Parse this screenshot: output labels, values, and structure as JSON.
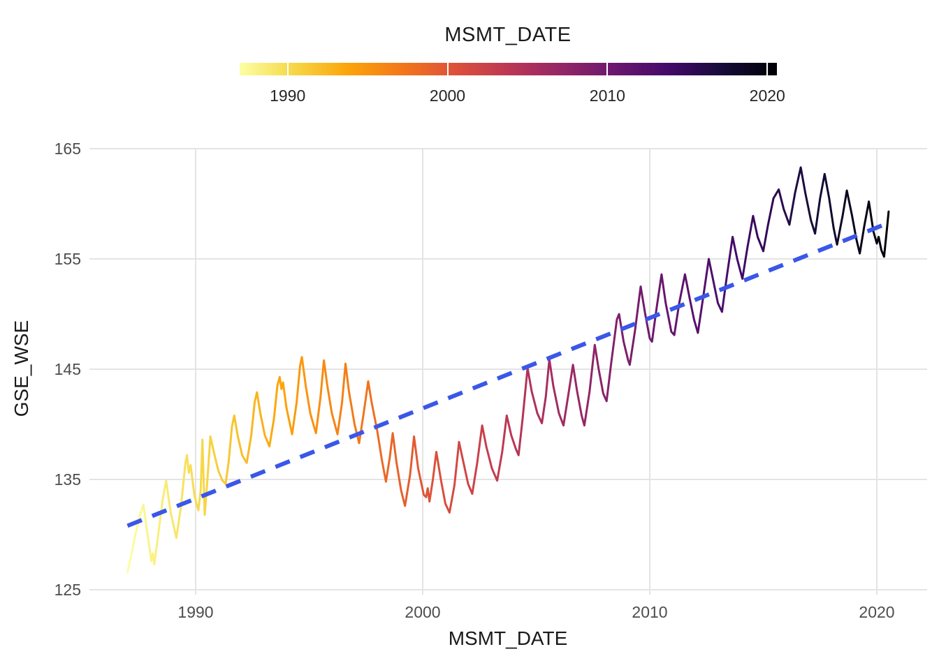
{
  "legend": {
    "title": "MSMT_DATE",
    "range_years": [
      1987.0,
      2020.6
    ],
    "ticks": [
      {
        "label": "1990",
        "year": 1990
      },
      {
        "label": "2000",
        "year": 2000
      },
      {
        "label": "2010",
        "year": 2010
      },
      {
        "label": "2020",
        "year": 2020
      }
    ],
    "palette": [
      "#FCFFA4",
      "#F6D746",
      "#FCA50A",
      "#F37819",
      "#DD513A",
      "#BC3754",
      "#932667",
      "#6A176E",
      "#420A68",
      "#160B39",
      "#000004"
    ],
    "tick_mark_color": "#FFFFFF"
  },
  "axes": {
    "x": {
      "label": "MSMT_DATE",
      "ticks": [
        {
          "label": "1990",
          "year": 1990
        },
        {
          "label": "2000",
          "year": 2000
        },
        {
          "label": "2010",
          "year": 2010
        },
        {
          "label": "2020",
          "year": 2020
        }
      ]
    },
    "y": {
      "label": "GSE_WSE",
      "ticks": [
        {
          "label": "165",
          "value": 165
        },
        {
          "label": "155",
          "value": 155
        },
        {
          "label": "145",
          "value": 145
        },
        {
          "label": "135",
          "value": 135
        },
        {
          "label": "125",
          "value": 125
        }
      ]
    }
  },
  "colors": {
    "grid": "#E4E4E4",
    "axis_text": "#4D4D4D",
    "label_text": "#1A1A1A",
    "trend_blue": "#3A57E8",
    "background": "#FFFFFF"
  },
  "chart_data": {
    "type": "line",
    "title": "MSMT_DATE",
    "xlabel": "MSMT_DATE",
    "ylabel": "GSE_WSE",
    "xlim": [
      1985.4,
      2022.4
    ],
    "ylim": [
      124.5,
      165.2
    ],
    "grid": "major-only, light gray on white",
    "legend_position": "top colorbar, inferno palette reversed (light yellow = 1987, black = 2020.6)",
    "series": [
      {
        "name": "GSE_WSE",
        "style": "solid, width 3, colored by MSMT_DATE along inferno-reversed gradient",
        "points": [
          [
            1987.0,
            126.6
          ],
          [
            1987.15,
            128.0
          ],
          [
            1987.35,
            130.0
          ],
          [
            1987.55,
            131.8
          ],
          [
            1987.7,
            132.7
          ],
          [
            1987.85,
            130.5
          ],
          [
            1988.05,
            127.6
          ],
          [
            1988.12,
            128.3
          ],
          [
            1988.18,
            127.3
          ],
          [
            1988.35,
            130.0
          ],
          [
            1988.55,
            133.2
          ],
          [
            1988.7,
            134.9
          ],
          [
            1988.9,
            132.0
          ],
          [
            1989.15,
            129.7
          ],
          [
            1989.35,
            132.5
          ],
          [
            1989.55,
            136.5
          ],
          [
            1989.62,
            137.2
          ],
          [
            1989.7,
            135.6
          ],
          [
            1989.78,
            136.3
          ],
          [
            1989.95,
            133.5
          ],
          [
            1990.12,
            132.2
          ],
          [
            1990.22,
            134.0
          ],
          [
            1990.3,
            138.6
          ],
          [
            1990.4,
            131.8
          ],
          [
            1990.52,
            135.0
          ],
          [
            1990.65,
            138.9
          ],
          [
            1990.8,
            137.5
          ],
          [
            1991.0,
            135.8
          ],
          [
            1991.18,
            134.9
          ],
          [
            1991.32,
            134.6
          ],
          [
            1991.45,
            136.5
          ],
          [
            1991.6,
            139.8
          ],
          [
            1991.7,
            140.8
          ],
          [
            1991.85,
            139.0
          ],
          [
            1992.05,
            137.2
          ],
          [
            1992.25,
            136.5
          ],
          [
            1992.45,
            139.0
          ],
          [
            1992.6,
            142.0
          ],
          [
            1992.7,
            142.9
          ],
          [
            1992.85,
            141.0
          ],
          [
            1993.05,
            139.0
          ],
          [
            1993.25,
            138.0
          ],
          [
            1993.45,
            140.5
          ],
          [
            1993.6,
            143.5
          ],
          [
            1993.7,
            144.3
          ],
          [
            1993.78,
            143.2
          ],
          [
            1993.85,
            143.8
          ],
          [
            1994.0,
            141.5
          ],
          [
            1994.25,
            139.1
          ],
          [
            1994.45,
            142.0
          ],
          [
            1994.6,
            145.3
          ],
          [
            1994.68,
            146.1
          ],
          [
            1994.85,
            143.5
          ],
          [
            1995.05,
            141.0
          ],
          [
            1995.3,
            139.2
          ],
          [
            1995.5,
            142.5
          ],
          [
            1995.65,
            145.8
          ],
          [
            1995.8,
            143.5
          ],
          [
            1996.0,
            141.0
          ],
          [
            1996.25,
            139.1
          ],
          [
            1996.45,
            142.0
          ],
          [
            1996.6,
            145.5
          ],
          [
            1996.75,
            143.0
          ],
          [
            1997.0,
            140.0
          ],
          [
            1997.2,
            138.3
          ],
          [
            1997.4,
            141.0
          ],
          [
            1997.6,
            143.9
          ],
          [
            1997.75,
            142.0
          ],
          [
            1998.0,
            139.4
          ],
          [
            1998.2,
            136.8
          ],
          [
            1998.38,
            134.8
          ],
          [
            1998.55,
            137.0
          ],
          [
            1998.68,
            139.2
          ],
          [
            1998.85,
            136.5
          ],
          [
            1999.05,
            134.0
          ],
          [
            1999.22,
            132.6
          ],
          [
            1999.45,
            135.5
          ],
          [
            1999.62,
            138.9
          ],
          [
            1999.8,
            136.0
          ],
          [
            2000.05,
            133.6
          ],
          [
            2000.15,
            133.4
          ],
          [
            2000.22,
            134.2
          ],
          [
            2000.3,
            133.0
          ],
          [
            2000.45,
            135.0
          ],
          [
            2000.6,
            137.5
          ],
          [
            2000.8,
            135.0
          ],
          [
            2001.0,
            132.8
          ],
          [
            2001.18,
            132.0
          ],
          [
            2001.4,
            134.5
          ],
          [
            2001.6,
            138.4
          ],
          [
            2001.8,
            136.5
          ],
          [
            2002.0,
            134.6
          ],
          [
            2002.18,
            133.7
          ],
          [
            2002.4,
            136.5
          ],
          [
            2002.62,
            139.9
          ],
          [
            2002.8,
            138.0
          ],
          [
            2003.05,
            136.0
          ],
          [
            2003.28,
            134.9
          ],
          [
            2003.5,
            137.5
          ],
          [
            2003.7,
            140.8
          ],
          [
            2003.9,
            139.0
          ],
          [
            2004.1,
            137.8
          ],
          [
            2004.22,
            137.2
          ],
          [
            2004.4,
            140.5
          ],
          [
            2004.62,
            145.1
          ],
          [
            2004.8,
            143.0
          ],
          [
            2005.05,
            141.0
          ],
          [
            2005.25,
            140.1
          ],
          [
            2005.42,
            142.5
          ],
          [
            2005.58,
            145.9
          ],
          [
            2005.75,
            143.5
          ],
          [
            2006.0,
            141.0
          ],
          [
            2006.2,
            139.9
          ],
          [
            2006.4,
            142.5
          ],
          [
            2006.62,
            145.4
          ],
          [
            2006.8,
            143.0
          ],
          [
            2007.0,
            140.8
          ],
          [
            2007.12,
            139.9
          ],
          [
            2007.35,
            143.0
          ],
          [
            2007.58,
            147.2
          ],
          [
            2007.75,
            145.0
          ],
          [
            2007.95,
            142.8
          ],
          [
            2008.1,
            142.1
          ],
          [
            2008.3,
            145.5
          ],
          [
            2008.55,
            149.5
          ],
          [
            2008.65,
            150.0
          ],
          [
            2008.85,
            147.5
          ],
          [
            2009.05,
            145.8
          ],
          [
            2009.12,
            145.4
          ],
          [
            2009.35,
            148.5
          ],
          [
            2009.6,
            152.5
          ],
          [
            2009.8,
            150.0
          ],
          [
            2010.0,
            147.8
          ],
          [
            2010.1,
            147.5
          ],
          [
            2010.3,
            150.5
          ],
          [
            2010.52,
            153.6
          ],
          [
            2010.7,
            151.0
          ],
          [
            2010.95,
            148.4
          ],
          [
            2011.08,
            148.1
          ],
          [
            2011.3,
            151.0
          ],
          [
            2011.55,
            153.6
          ],
          [
            2011.75,
            151.5
          ],
          [
            2011.95,
            149.5
          ],
          [
            2012.12,
            148.3
          ],
          [
            2012.35,
            151.5
          ],
          [
            2012.6,
            155.0
          ],
          [
            2012.8,
            153.0
          ],
          [
            2013.0,
            151.0
          ],
          [
            2013.18,
            150.2
          ],
          [
            2013.4,
            153.5
          ],
          [
            2013.65,
            157.0
          ],
          [
            2013.85,
            155.0
          ],
          [
            2014.08,
            153.2
          ],
          [
            2014.3,
            156.0
          ],
          [
            2014.55,
            158.9
          ],
          [
            2014.75,
            157.0
          ],
          [
            2015.0,
            155.7
          ],
          [
            2015.2,
            158.0
          ],
          [
            2015.45,
            160.5
          ],
          [
            2015.68,
            161.3
          ],
          [
            2015.9,
            159.5
          ],
          [
            2016.15,
            158.1
          ],
          [
            2016.4,
            161.0
          ],
          [
            2016.65,
            163.3
          ],
          [
            2016.85,
            161.0
          ],
          [
            2017.1,
            158.5
          ],
          [
            2017.28,
            157.3
          ],
          [
            2017.5,
            160.5
          ],
          [
            2017.7,
            162.7
          ],
          [
            2017.9,
            160.5
          ],
          [
            2018.1,
            157.8
          ],
          [
            2018.25,
            156.3
          ],
          [
            2018.5,
            159.0
          ],
          [
            2018.68,
            161.2
          ],
          [
            2018.9,
            159.0
          ],
          [
            2019.1,
            156.8
          ],
          [
            2019.25,
            155.5
          ],
          [
            2019.45,
            158.0
          ],
          [
            2019.65,
            160.2
          ],
          [
            2019.85,
            157.5
          ],
          [
            2020.0,
            156.4
          ],
          [
            2020.08,
            157.0
          ],
          [
            2020.2,
            155.8
          ],
          [
            2020.32,
            155.2
          ],
          [
            2020.45,
            157.8
          ],
          [
            2020.52,
            159.3
          ]
        ]
      },
      {
        "name": "linear trend",
        "style": "dashed, width 6, blue",
        "points": [
          [
            1987.0,
            130.8
          ],
          [
            2020.56,
            158.3
          ]
        ]
      }
    ]
  }
}
